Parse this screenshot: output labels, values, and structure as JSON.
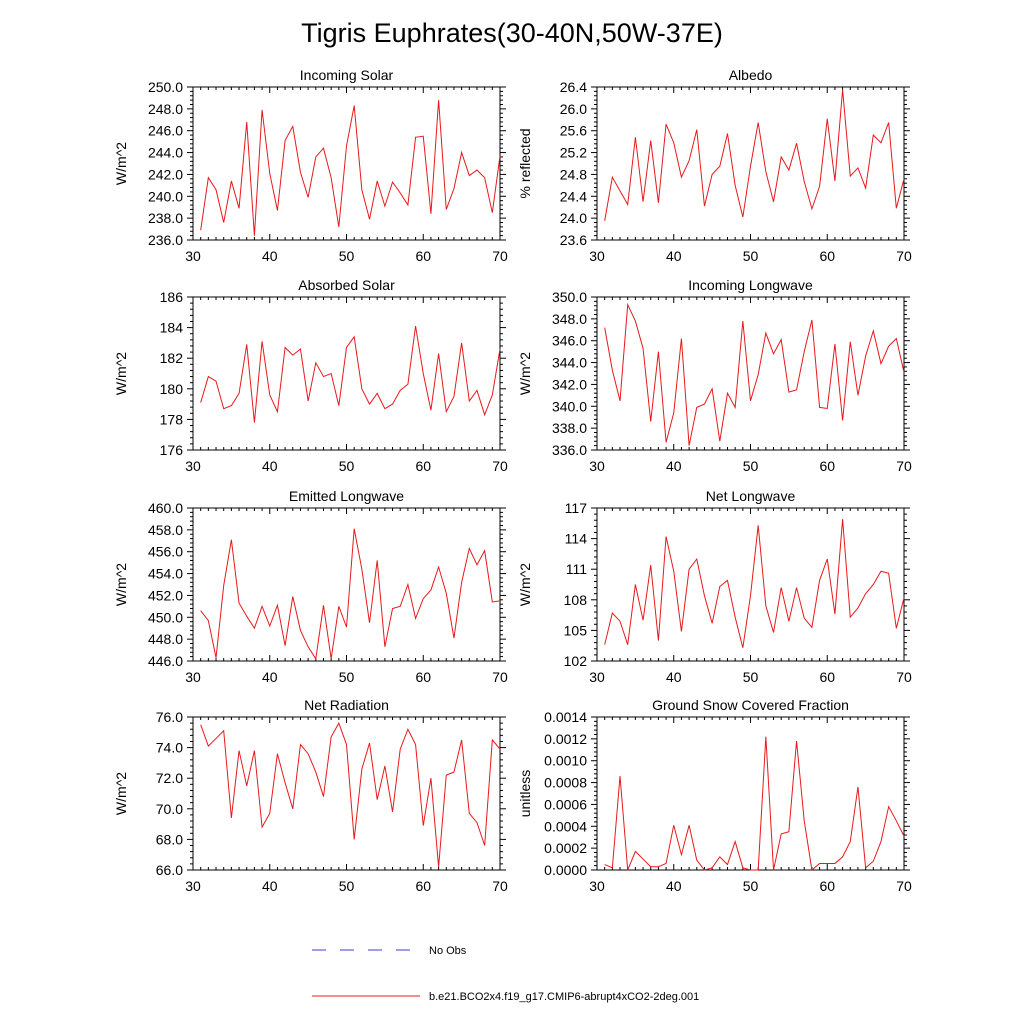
{
  "title": "Tigris Euphrates(30-40N,50W-37E)",
  "colors": {
    "model": "#e8191c",
    "obs": "#3a3ad0",
    "axis": "#000000"
  },
  "legend": {
    "obs_label": "No Obs",
    "model_label": "b.e21.BCO2x4.f19_g17.CMIP6-abrupt4xCO2-2deg.001"
  },
  "chart_data": [
    {
      "type": "line",
      "title": "Incoming Solar",
      "ylabel": "W/m^2",
      "xlim": [
        30,
        70
      ],
      "ylim": [
        236,
        250
      ],
      "xticks": [
        30,
        40,
        50,
        60,
        70
      ],
      "yticks": [
        "236.0",
        "238.0",
        "240.0",
        "242.0",
        "244.0",
        "246.0",
        "248.0",
        "250.0"
      ],
      "x_start": 31,
      "values": [
        236.9,
        241.7,
        240.6,
        237.6,
        241.4,
        238.9,
        246.8,
        236.4,
        247.9,
        242.1,
        238.7,
        245.1,
        246.4,
        242.2,
        239.9,
        243.6,
        244.4,
        241.7,
        237.2,
        244.6,
        248.3,
        240.6,
        237.9,
        241.4,
        239.1,
        241.3,
        240.3,
        239.2,
        245.4,
        245.5,
        238.4,
        248.8,
        238.8,
        240.7,
        244.0,
        241.9,
        242.4,
        241.7,
        238.5,
        243.7
      ]
    },
    {
      "type": "line",
      "title": "Albedo",
      "ylabel": "% reflected",
      "xlim": [
        30,
        70
      ],
      "ylim": [
        23.6,
        26.4
      ],
      "xticks": [
        30,
        40,
        50,
        60,
        70
      ],
      "yticks": [
        "23.6",
        "24.0",
        "24.4",
        "24.8",
        "25.2",
        "25.6",
        "26.0",
        "26.4"
      ],
      "x_start": 31,
      "values": [
        23.95,
        24.75,
        24.5,
        24.25,
        25.48,
        24.3,
        25.42,
        24.28,
        25.72,
        25.38,
        24.75,
        25.05,
        25.62,
        24.22,
        24.8,
        24.95,
        25.55,
        24.6,
        24.02,
        24.95,
        25.75,
        24.85,
        24.3,
        25.12,
        24.88,
        25.37,
        24.67,
        24.17,
        24.58,
        25.82,
        24.68,
        26.35,
        24.77,
        24.92,
        24.55,
        25.52,
        25.38,
        25.75,
        24.18,
        24.72
      ]
    },
    {
      "type": "line",
      "title": "Absorbed Solar",
      "ylabel": "W/m^2",
      "xlim": [
        30,
        70
      ],
      "ylim": [
        176,
        186
      ],
      "xticks": [
        30,
        40,
        50,
        60,
        70
      ],
      "yticks": [
        "176",
        "178",
        "180",
        "182",
        "184",
        "186"
      ],
      "x_start": 31,
      "values": [
        179.1,
        180.8,
        180.5,
        178.7,
        178.9,
        179.7,
        182.9,
        177.8,
        183.1,
        179.6,
        178.5,
        182.7,
        182.2,
        182.6,
        179.2,
        181.7,
        180.8,
        181.0,
        178.9,
        182.7,
        183.4,
        180.0,
        179.0,
        179.7,
        178.7,
        179.0,
        179.9,
        180.3,
        184.1,
        181.0,
        178.6,
        182.3,
        178.5,
        179.5,
        183.0,
        179.2,
        179.9,
        178.3,
        179.6,
        182.6
      ]
    },
    {
      "type": "line",
      "title": "Incoming Longwave",
      "ylabel": "W/m^2",
      "xlim": [
        30,
        70
      ],
      "ylim": [
        336,
        350
      ],
      "xticks": [
        30,
        40,
        50,
        60,
        70
      ],
      "yticks": [
        "336.0",
        "338.0",
        "340.0",
        "342.0",
        "344.0",
        "346.0",
        "348.0",
        "350.0"
      ],
      "x_start": 31,
      "values": [
        347.2,
        343.3,
        340.5,
        349.3,
        347.8,
        345.3,
        338.6,
        345.0,
        336.7,
        339.4,
        346.2,
        336.4,
        339.9,
        340.2,
        341.6,
        336.8,
        341.2,
        339.9,
        347.8,
        340.5,
        342.9,
        346.7,
        344.8,
        346.1,
        341.3,
        341.5,
        345.0,
        347.9,
        339.9,
        339.8,
        345.7,
        338.7,
        345.9,
        341.0,
        344.6,
        346.9,
        343.9,
        345.5,
        346.2,
        343.1
      ]
    },
    {
      "type": "line",
      "title": "Emitted Longwave",
      "ylabel": "W/m^2",
      "xlim": [
        30,
        70
      ],
      "ylim": [
        446,
        460
      ],
      "xticks": [
        30,
        40,
        50,
        60,
        70
      ],
      "yticks": [
        "446.0",
        "448.0",
        "450.0",
        "452.0",
        "454.0",
        "456.0",
        "458.0",
        "460.0"
      ],
      "x_start": 31,
      "values": [
        450.6,
        449.7,
        446.3,
        452.9,
        457.1,
        451.3,
        450.1,
        449.0,
        451.0,
        449.2,
        451.1,
        447.4,
        451.9,
        448.8,
        447.3,
        446.2,
        451.1,
        446.2,
        451.0,
        449.1,
        458.1,
        454.4,
        449.5,
        455.2,
        447.3,
        450.8,
        451.0,
        453.0,
        449.9,
        451.7,
        452.5,
        454.6,
        452.2,
        448.1,
        453.2,
        456.3,
        454.8,
        456.1,
        451.4,
        451.5
      ]
    },
    {
      "type": "line",
      "title": "Net Longwave",
      "ylabel": "W/m^2",
      "xlim": [
        30,
        70
      ],
      "ylim": [
        102,
        117
      ],
      "xticks": [
        30,
        40,
        50,
        60,
        70
      ],
      "yticks": [
        "102",
        "105",
        "108",
        "111",
        "114",
        "117"
      ],
      "x_start": 31,
      "values": [
        103.6,
        106.7,
        105.9,
        103.6,
        109.5,
        106.0,
        111.4,
        104.0,
        114.2,
        110.8,
        104.9,
        111.0,
        112.0,
        108.4,
        105.7,
        109.3,
        109.9,
        106.3,
        103.3,
        108.4,
        115.3,
        107.4,
        104.8,
        109.2,
        105.9,
        109.2,
        106.2,
        105.3,
        109.9,
        112.0,
        106.6,
        115.9,
        106.3,
        107.2,
        108.6,
        109.5,
        110.8,
        110.6,
        105.2,
        108.2
      ]
    },
    {
      "type": "line",
      "title": "Net Radiation",
      "ylabel": "W/m^2",
      "xlim": [
        30,
        70
      ],
      "ylim": [
        66,
        76
      ],
      "xticks": [
        30,
        40,
        50,
        60,
        70
      ],
      "yticks": [
        "66.0",
        "68.0",
        "70.0",
        "72.0",
        "74.0",
        "76.0"
      ],
      "x_start": 31,
      "values": [
        75.5,
        74.1,
        74.6,
        75.1,
        69.4,
        73.8,
        71.5,
        73.8,
        68.8,
        69.7,
        73.6,
        71.7,
        70.0,
        74.2,
        73.6,
        72.4,
        70.8,
        74.7,
        75.6,
        74.2,
        68.0,
        72.6,
        74.3,
        70.6,
        72.8,
        69.8,
        73.9,
        75.2,
        74.2,
        68.9,
        72.0,
        66.2,
        72.2,
        72.4,
        74.5,
        69.7,
        69.1,
        67.6,
        74.5,
        73.9
      ]
    },
    {
      "type": "line",
      "title": "Ground Snow Covered Fraction",
      "ylabel": "unitless",
      "xlim": [
        30,
        70
      ],
      "ylim": [
        0,
        0.0014
      ],
      "xticks": [
        30,
        40,
        50,
        60,
        70
      ],
      "yticks": [
        "0.0000",
        "0.0002",
        "0.0004",
        "0.0006",
        "0.0008",
        "0.0010",
        "0.0012",
        "0.0014"
      ],
      "x_start": 31,
      "values": [
        5e-05,
        2e-05,
        0.00086,
        0.0,
        0.00017,
        0.0001,
        3e-05,
        3e-05,
        6e-05,
        0.00041,
        0.00014,
        0.00041,
        9e-05,
        0.0,
        2e-05,
        0.00012,
        5e-05,
        0.00026,
        2e-05,
        0.0,
        0.0,
        0.00122,
        0.0,
        0.00033,
        0.00035,
        0.00118,
        0.00045,
        0.0,
        6e-05,
        6e-05,
        6e-05,
        0.00012,
        0.00026,
        0.00076,
        2e-05,
        8e-05,
        0.00026,
        0.00058,
        0.00045,
        0.00031
      ]
    }
  ]
}
